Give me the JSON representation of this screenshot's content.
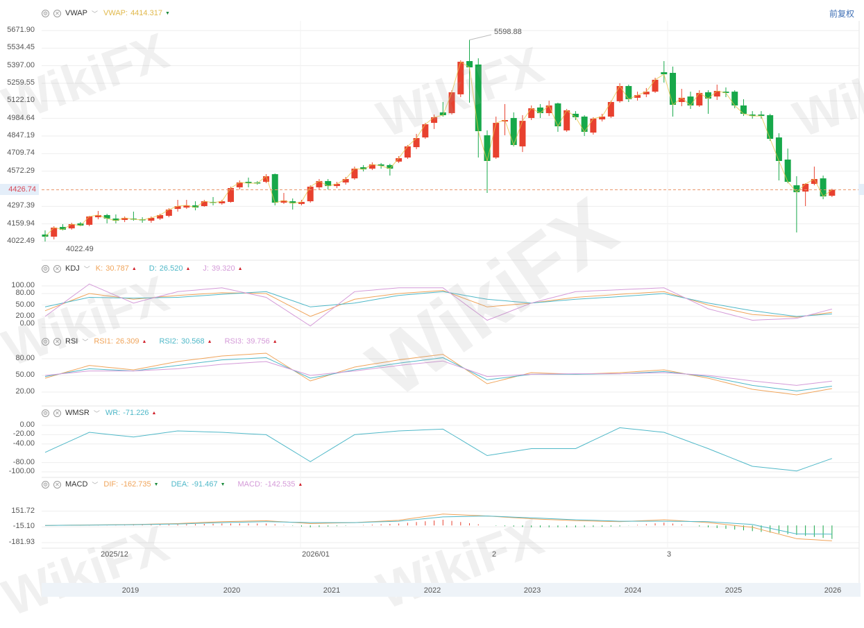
{
  "colors": {
    "up": "#e8412f",
    "down": "#17a84a",
    "grid": "#eeeeee",
    "k": "#f0a45a",
    "d": "#4fb8c8",
    "j": "#d49ad8",
    "vwap": "#e8c547",
    "last_price_line": "#e8956a"
  },
  "header": {
    "adjust_label": "前复权"
  },
  "watermark": "WikiFX",
  "panels": {
    "main": {
      "name": "VWAP",
      "indicators": [
        {
          "label": "VWAP:",
          "value": "4414.317",
          "trend": "down",
          "color": "#e0b84a"
        }
      ],
      "max_label": "5598.88",
      "min_label": "4022.49",
      "last_price": "4426.74"
    },
    "kdj": {
      "name": "KDJ",
      "indicators": [
        {
          "label": "K:",
          "value": "30.787",
          "trend": "up",
          "color": "#f0a45a"
        },
        {
          "label": "D:",
          "value": "26.520",
          "trend": "up",
          "color": "#4fb8c8"
        },
        {
          "label": "J:",
          "value": "39.320",
          "trend": "up",
          "color": "#d49ad8"
        }
      ]
    },
    "rsi": {
      "name": "RSI",
      "indicators": [
        {
          "label": "RSI1:",
          "value": "26.309",
          "trend": "up",
          "color": "#f0a45a"
        },
        {
          "label": "RSI2:",
          "value": "30.568",
          "trend": "up",
          "color": "#4fb8c8"
        },
        {
          "label": "RSI3:",
          "value": "39.756",
          "trend": "up",
          "color": "#d49ad8"
        }
      ]
    },
    "wmsr": {
      "name": "WMSR",
      "indicators": [
        {
          "label": "WR:",
          "value": "-71.226",
          "trend": "up",
          "color": "#4fb8c8"
        }
      ]
    },
    "macd": {
      "name": "MACD",
      "indicators": [
        {
          "label": "DIF:",
          "value": "-162.735",
          "trend": "down",
          "color": "#f0a45a"
        },
        {
          "label": "DEA:",
          "value": "-91.467",
          "trend": "down",
          "color": "#4fb8c8"
        },
        {
          "label": "MACD:",
          "value": "-142.535",
          "trend": "up",
          "color": "#d49ad8"
        }
      ]
    }
  },
  "chart_data": [
    {
      "type": "candlestick",
      "name": "main",
      "yticks": [
        "5671.90",
        "5534.45",
        "5397.00",
        "5259.55",
        "5122.10",
        "4984.64",
        "4847.19",
        "4709.74",
        "4572.29",
        "4426.74",
        "4297.39",
        "4159.94",
        "4022.49"
      ],
      "ylim": [
        4022.49,
        5671.9
      ],
      "ohlc": [
        [
          4077,
          4060,
          4109,
          4022
        ],
        [
          4060,
          4131,
          4142,
          4039
        ],
        [
          4136,
          4115,
          4158,
          4109
        ],
        [
          4125,
          4158,
          4169,
          4115
        ],
        [
          4164,
          4147,
          4174,
          4142
        ],
        [
          4153,
          4218,
          4223,
          4142
        ],
        [
          4212,
          4229,
          4261,
          4196
        ],
        [
          4229,
          4202,
          4239,
          4164
        ],
        [
          4202,
          4185,
          4234,
          4164
        ],
        [
          4191,
          4207,
          4218,
          4174
        ],
        [
          4202,
          4196,
          4256,
          4185
        ],
        [
          4196,
          4191,
          4212,
          4169
        ],
        [
          4185,
          4207,
          4218,
          4169
        ],
        [
          4202,
          4229,
          4239,
          4191
        ],
        [
          4223,
          4272,
          4283,
          4212
        ],
        [
          4277,
          4299,
          4348,
          4256
        ],
        [
          4288,
          4305,
          4348,
          4277
        ],
        [
          4305,
          4288,
          4337,
          4266
        ],
        [
          4299,
          4337,
          4348,
          4294
        ],
        [
          4332,
          4326,
          4370,
          4305
        ],
        [
          4321,
          4337,
          4348,
          4310
        ],
        [
          4332,
          4440,
          4451,
          4326
        ],
        [
          4446,
          4484,
          4500,
          4429
        ],
        [
          4489,
          4478,
          4522,
          4446
        ],
        [
          4484,
          4478,
          4495,
          4467
        ],
        [
          4489,
          4533,
          4549,
          4478
        ],
        [
          4549,
          4326,
          4554,
          4305
        ],
        [
          4326,
          4343,
          4402,
          4316
        ],
        [
          4337,
          4321,
          4359,
          4272
        ],
        [
          4316,
          4332,
          4348,
          4305
        ],
        [
          4337,
          4451,
          4462,
          4326
        ],
        [
          4446,
          4495,
          4511,
          4429
        ],
        [
          4495,
          4456,
          4511,
          4429
        ],
        [
          4456,
          4473,
          4489,
          4440
        ],
        [
          4484,
          4511,
          4527,
          4467
        ],
        [
          4516,
          4592,
          4608,
          4505
        ],
        [
          4603,
          4587,
          4620,
          4570
        ],
        [
          4592,
          4625,
          4641,
          4581
        ],
        [
          4625,
          4614,
          4636,
          4592
        ],
        [
          4620,
          4592,
          4630,
          4538
        ],
        [
          4647,
          4674,
          4690,
          4636
        ],
        [
          4679,
          4766,
          4777,
          4668
        ],
        [
          4760,
          4831,
          4864,
          4744
        ],
        [
          4836,
          4939,
          4950,
          4825
        ],
        [
          4950,
          4994,
          5015,
          4902
        ],
        [
          5032,
          5010,
          5113,
          4999
        ],
        [
          5026,
          5189,
          5205,
          5015
        ],
        [
          5173,
          5428,
          5439,
          5151
        ],
        [
          5433,
          5384,
          5598.88,
          5108
        ],
        [
          5406,
          4885,
          5455,
          4679
        ],
        [
          4853,
          4652,
          4891,
          4402
        ],
        [
          4679,
          4950,
          4999,
          4668
        ],
        [
          4961,
          4972,
          5097,
          4853
        ],
        [
          4988,
          4777,
          5032,
          4766
        ],
        [
          4766,
          4966,
          5010,
          4722
        ],
        [
          4988,
          5064,
          5086,
          4972
        ],
        [
          5070,
          5026,
          5097,
          4988
        ],
        [
          5026,
          5086,
          5124,
          5004
        ],
        [
          5102,
          4923,
          5108,
          4880
        ],
        [
          4891,
          5048,
          5059,
          4880
        ],
        [
          5021,
          4994,
          5042,
          4972
        ],
        [
          4999,
          4880,
          5010,
          4847
        ],
        [
          4874,
          4983,
          4994,
          4858
        ],
        [
          4977,
          4999,
          5021,
          4961
        ],
        [
          4999,
          5113,
          5124,
          4988
        ],
        [
          5119,
          5238,
          5260,
          5108
        ],
        [
          5238,
          5135,
          5249,
          5113
        ],
        [
          5146,
          5167,
          5194,
          5124
        ],
        [
          5173,
          5194,
          5222,
          5151
        ],
        [
          5194,
          5287,
          5303,
          5184
        ],
        [
          5346,
          5330,
          5433,
          5265
        ],
        [
          5341,
          5091,
          5390,
          4999
        ],
        [
          5113,
          5146,
          5216,
          5080
        ],
        [
          5156,
          5086,
          5194,
          5059
        ],
        [
          5086,
          5184,
          5205,
          5075
        ],
        [
          5189,
          5140,
          5205,
          5021
        ],
        [
          5156,
          5200,
          5249,
          5129
        ],
        [
          5194,
          5184,
          5227,
          5151
        ],
        [
          5194,
          5086,
          5205,
          5064
        ],
        [
          5086,
          5021,
          5135,
          5004
        ],
        [
          5015,
          5004,
          5042,
          4983
        ],
        [
          5015,
          5004,
          5042,
          4983
        ],
        [
          5010,
          4825,
          5021,
          4809
        ],
        [
          4836,
          4652,
          4869,
          4500
        ],
        [
          4663,
          4489,
          4749,
          4478
        ],
        [
          4462,
          4408,
          4533,
          4093
        ],
        [
          4413,
          4473,
          4478,
          4299
        ],
        [
          4473,
          4511,
          4608,
          4462
        ],
        [
          4516,
          4375,
          4538,
          4353
        ],
        [
          4380,
          4426.74,
          4435,
          4370
        ]
      ],
      "x_labels": [
        "2025/12",
        "2026/01",
        "2",
        "3"
      ],
      "navigator_labels": [
        "2019",
        "2020",
        "2021",
        "2022",
        "2023",
        "2024",
        "2025",
        "2026"
      ]
    },
    {
      "type": "line",
      "name": "KDJ",
      "yticks": [
        "100.00",
        "80.00",
        "50.00",
        "20.00",
        "0.00"
      ],
      "ylim": [
        0,
        100
      ],
      "sample_index": [
        0,
        5,
        10,
        15,
        20,
        25,
        30,
        35,
        40,
        45,
        50,
        55,
        60,
        65,
        70,
        75,
        80,
        85,
        89
      ],
      "series": [
        {
          "name": "K",
          "values": [
            35,
            80,
            65,
            75,
            82,
            80,
            20,
            65,
            80,
            88,
            45,
            55,
            70,
            78,
            85,
            50,
            25,
            18,
            30.787
          ]
        },
        {
          "name": "D",
          "values": [
            45,
            70,
            68,
            70,
            78,
            85,
            45,
            55,
            75,
            85,
            65,
            55,
            65,
            72,
            80,
            55,
            35,
            20,
            26.52
          ]
        },
        {
          "name": "J",
          "values": [
            20,
            105,
            55,
            85,
            95,
            70,
            -5,
            85,
            95,
            95,
            10,
            55,
            85,
            90,
            95,
            40,
            10,
            15,
            39.32
          ]
        }
      ]
    },
    {
      "type": "line",
      "name": "RSI",
      "yticks": [
        "80.00",
        "50.00",
        "20.00"
      ],
      "ylim": [
        0,
        100
      ],
      "sample_index": [
        0,
        5,
        10,
        15,
        20,
        25,
        30,
        35,
        40,
        45,
        50,
        55,
        60,
        65,
        70,
        75,
        80,
        85,
        89
      ],
      "series": [
        {
          "name": "RSI1",
          "values": [
            45,
            68,
            60,
            75,
            85,
            90,
            40,
            65,
            78,
            88,
            35,
            55,
            52,
            55,
            60,
            45,
            25,
            15,
            26.309
          ]
        },
        {
          "name": "RSI2",
          "values": [
            48,
            62,
            58,
            68,
            78,
            82,
            45,
            60,
            72,
            82,
            42,
            52,
            52,
            53,
            57,
            48,
            32,
            22,
            30.568
          ]
        },
        {
          "name": "RSI3",
          "values": [
            50,
            58,
            58,
            62,
            70,
            75,
            50,
            58,
            68,
            76,
            48,
            52,
            53,
            53,
            55,
            50,
            40,
            32,
            39.756
          ]
        }
      ]
    },
    {
      "type": "line",
      "name": "WMSR",
      "yticks": [
        "0.00",
        "-20.00",
        "-40.00",
        "-80.00",
        "-100.00"
      ],
      "ylim": [
        -100,
        0
      ],
      "sample_index": [
        0,
        5,
        10,
        15,
        20,
        25,
        30,
        35,
        40,
        45,
        50,
        55,
        60,
        65,
        70,
        75,
        80,
        85,
        89
      ],
      "series": [
        {
          "name": "WR",
          "values": [
            -58,
            -15,
            -25,
            -12,
            -15,
            -20,
            -78,
            -20,
            -12,
            -8,
            -65,
            -50,
            -50,
            -5,
            -15,
            -50,
            -88,
            -98,
            -71.226
          ]
        }
      ]
    },
    {
      "type": "line+bar",
      "name": "MACD",
      "yticks": [
        "151.72",
        "-15.10",
        "-181.93"
      ],
      "ylim": [
        -181.93,
        151.72
      ],
      "sample_index": [
        0,
        5,
        10,
        15,
        20,
        25,
        30,
        35,
        40,
        45,
        50,
        55,
        60,
        65,
        70,
        75,
        80,
        85,
        89
      ],
      "series": [
        {
          "name": "DIF",
          "values": [
            0,
            5,
            10,
            20,
            40,
            50,
            20,
            30,
            55,
            120,
            100,
            70,
            50,
            40,
            60,
            30,
            -20,
            -140,
            -162.735
          ]
        },
        {
          "name": "DEA",
          "values": [
            0,
            3,
            8,
            15,
            30,
            40,
            30,
            30,
            45,
            90,
            100,
            80,
            60,
            45,
            45,
            40,
            10,
            -90,
            -91.467
          ]
        }
      ]
    }
  ]
}
